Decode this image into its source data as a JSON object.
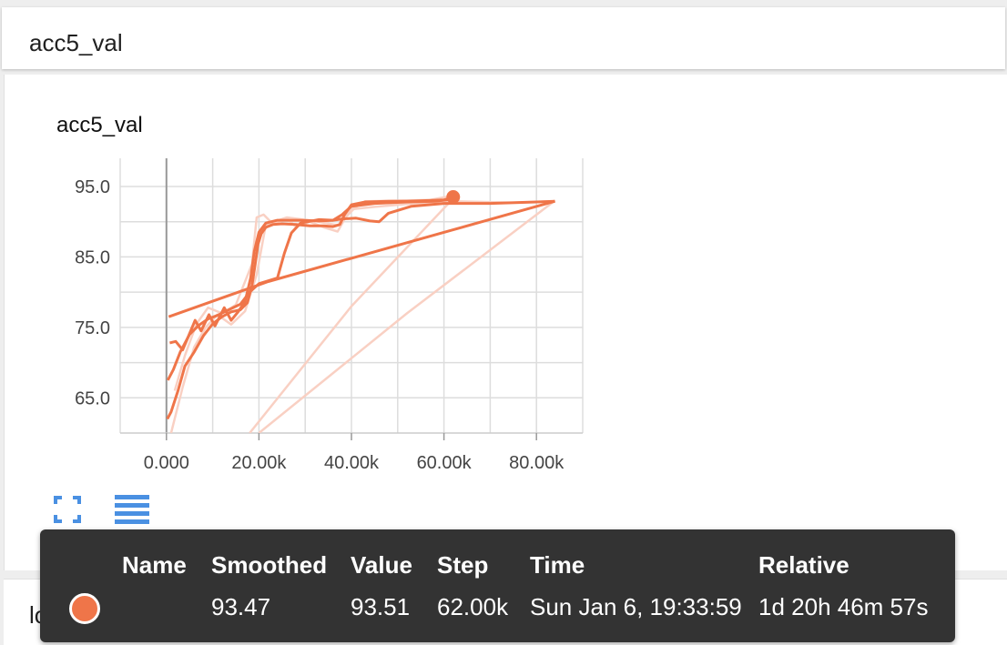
{
  "panel": {
    "title": "acc5_val"
  },
  "next_panel": {
    "title": "loss_train"
  },
  "icons": {
    "fullscreen": "fullscreen-icon",
    "list": "list-icon"
  },
  "colors": {
    "series": "#ef7549",
    "series_faint": "#f9d0c3",
    "tooltip_bg": "#333333"
  },
  "chart_data": {
    "type": "line",
    "title": "acc5_val",
    "xlim": [
      -10000,
      90000
    ],
    "ylim": [
      60,
      99
    ],
    "x_ticks": [
      "0.000",
      "20.00k",
      "40.00k",
      "60.00k",
      "80.00k"
    ],
    "y_ticks": [
      "65.0",
      "75.0",
      "85.0",
      "95.0"
    ],
    "grid": true,
    "series": [
      {
        "style": "smoothed",
        "points": [
          [
            200,
            62
          ],
          [
            1000,
            63
          ],
          [
            2500,
            66
          ],
          [
            4000,
            69.5
          ],
          [
            6000,
            71.5
          ],
          [
            8000,
            73.8
          ],
          [
            10000,
            75.5
          ],
          [
            12000,
            76.5
          ],
          [
            14000,
            77.2
          ],
          [
            16000,
            77.5
          ],
          [
            17500,
            78.5
          ],
          [
            18500,
            81
          ],
          [
            19200,
            84
          ],
          [
            19800,
            86.8
          ],
          [
            20500,
            88.3
          ],
          [
            21500,
            89.2
          ],
          [
            23000,
            89.6
          ],
          [
            25000,
            89.7
          ],
          [
            28000,
            89.6
          ],
          [
            31000,
            89.4
          ],
          [
            34000,
            89.4
          ],
          [
            36000,
            89.3
          ],
          [
            37500,
            89.6
          ],
          [
            38500,
            91
          ],
          [
            40000,
            92.4
          ],
          [
            43000,
            92.8
          ],
          [
            48000,
            92.9
          ],
          [
            52000,
            92.9
          ],
          [
            56000,
            93
          ],
          [
            60000,
            93.1
          ],
          [
            62000,
            93.47
          ]
        ]
      },
      {
        "style": "smoothed",
        "points": [
          [
            500,
            76.5
          ],
          [
            22000,
            81.5
          ],
          [
            84000,
            92.9
          ]
        ]
      },
      {
        "style": "smoothed",
        "points": [
          [
            700,
            72.8
          ],
          [
            2000,
            73
          ],
          [
            3500,
            71.8
          ],
          [
            4800,
            73.8
          ],
          [
            6200,
            76
          ],
          [
            7500,
            74.5
          ],
          [
            9200,
            76.8
          ],
          [
            10500,
            75.2
          ],
          [
            12500,
            77.8
          ],
          [
            14000,
            76
          ],
          [
            15500,
            77.2
          ],
          [
            17000,
            78.7
          ],
          [
            18200,
            82
          ],
          [
            19000,
            85.8
          ],
          [
            20000,
            88.5
          ],
          [
            21500,
            89.8
          ],
          [
            24000,
            90.2
          ],
          [
            29000,
            90.2
          ],
          [
            33000,
            90.1
          ],
          [
            36000,
            90.2
          ],
          [
            38000,
            90.4
          ],
          [
            41000,
            90.5
          ],
          [
            44000,
            90.1
          ],
          [
            46000,
            90
          ],
          [
            48000,
            91.2
          ],
          [
            53000,
            92.2
          ],
          [
            60000,
            92.6
          ],
          [
            70000,
            92.6
          ],
          [
            80000,
            92.8
          ],
          [
            84000,
            92.9
          ]
        ]
      },
      {
        "style": "smoothed",
        "points": [
          [
            300,
            67.5
          ],
          [
            1500,
            69
          ],
          [
            3000,
            71.5
          ],
          [
            5000,
            74
          ],
          [
            7000,
            75.3
          ],
          [
            9000,
            76.2
          ],
          [
            11000,
            76.7
          ],
          [
            13500,
            77.5
          ],
          [
            16000,
            78.3
          ],
          [
            18000,
            80
          ],
          [
            20000,
            81.2
          ],
          [
            22000,
            81.6
          ],
          [
            24000,
            82
          ],
          [
            25500,
            85.5
          ],
          [
            27000,
            88.4
          ],
          [
            29000,
            89.8
          ],
          [
            33000,
            90.3
          ],
          [
            36000,
            90.2
          ],
          [
            38000,
            91
          ],
          [
            40000,
            92.2
          ],
          [
            45000,
            92.6
          ],
          [
            52000,
            92.8
          ],
          [
            58000,
            92.9
          ],
          [
            62000,
            93.2
          ]
        ]
      },
      {
        "style": "raw",
        "points": [
          [
            1800,
            66
          ],
          [
            4000,
            71
          ],
          [
            6500,
            75.5
          ],
          [
            9000,
            77.8
          ],
          [
            12000,
            77
          ],
          [
            15000,
            78.2
          ],
          [
            18500,
            84
          ],
          [
            19500,
            90.6
          ],
          [
            21000,
            91
          ],
          [
            23000,
            89.7
          ],
          [
            26000,
            90.4
          ],
          [
            28000,
            89.3
          ],
          [
            31000,
            90
          ],
          [
            34000,
            89.2
          ],
          [
            37000,
            88.6
          ],
          [
            39500,
            91.5
          ],
          [
            43000,
            92.9
          ],
          [
            50000,
            93
          ],
          [
            57000,
            93.1
          ],
          [
            62000,
            93.7
          ]
        ]
      },
      {
        "style": "raw",
        "points": [
          [
            18000,
            60
          ],
          [
            40000,
            78
          ],
          [
            62000,
            93.3
          ]
        ]
      },
      {
        "style": "raw",
        "points": [
          [
            20000,
            60
          ],
          [
            52000,
            77
          ],
          [
            84000,
            93
          ]
        ]
      },
      {
        "style": "raw",
        "points": [
          [
            1000,
            60
          ],
          [
            3500,
            66.5
          ],
          [
            6000,
            72.2
          ],
          [
            8500,
            75
          ],
          [
            11000,
            76.8
          ],
          [
            14000,
            75.4
          ],
          [
            17000,
            77.3
          ],
          [
            19500,
            82.5
          ],
          [
            21500,
            89.6
          ],
          [
            26000,
            90.6
          ],
          [
            32000,
            90.1
          ],
          [
            37000,
            89.5
          ],
          [
            40500,
            91.8
          ],
          [
            45000,
            92.1
          ],
          [
            52000,
            92.5
          ],
          [
            62000,
            92.9
          ],
          [
            75000,
            92.7
          ],
          [
            84000,
            92.9
          ]
        ]
      }
    ],
    "highlight": {
      "x": 62000,
      "y": 93.51
    }
  },
  "tooltip": {
    "headers": [
      "Name",
      "Smoothed",
      "Value",
      "Step",
      "Time",
      "Relative"
    ],
    "row": {
      "name": "",
      "smoothed": "93.47",
      "value": "93.51",
      "step": "62.00k",
      "time": "Sun Jan 6, 19:33:59",
      "relative": "1d 20h 46m 57s"
    }
  }
}
